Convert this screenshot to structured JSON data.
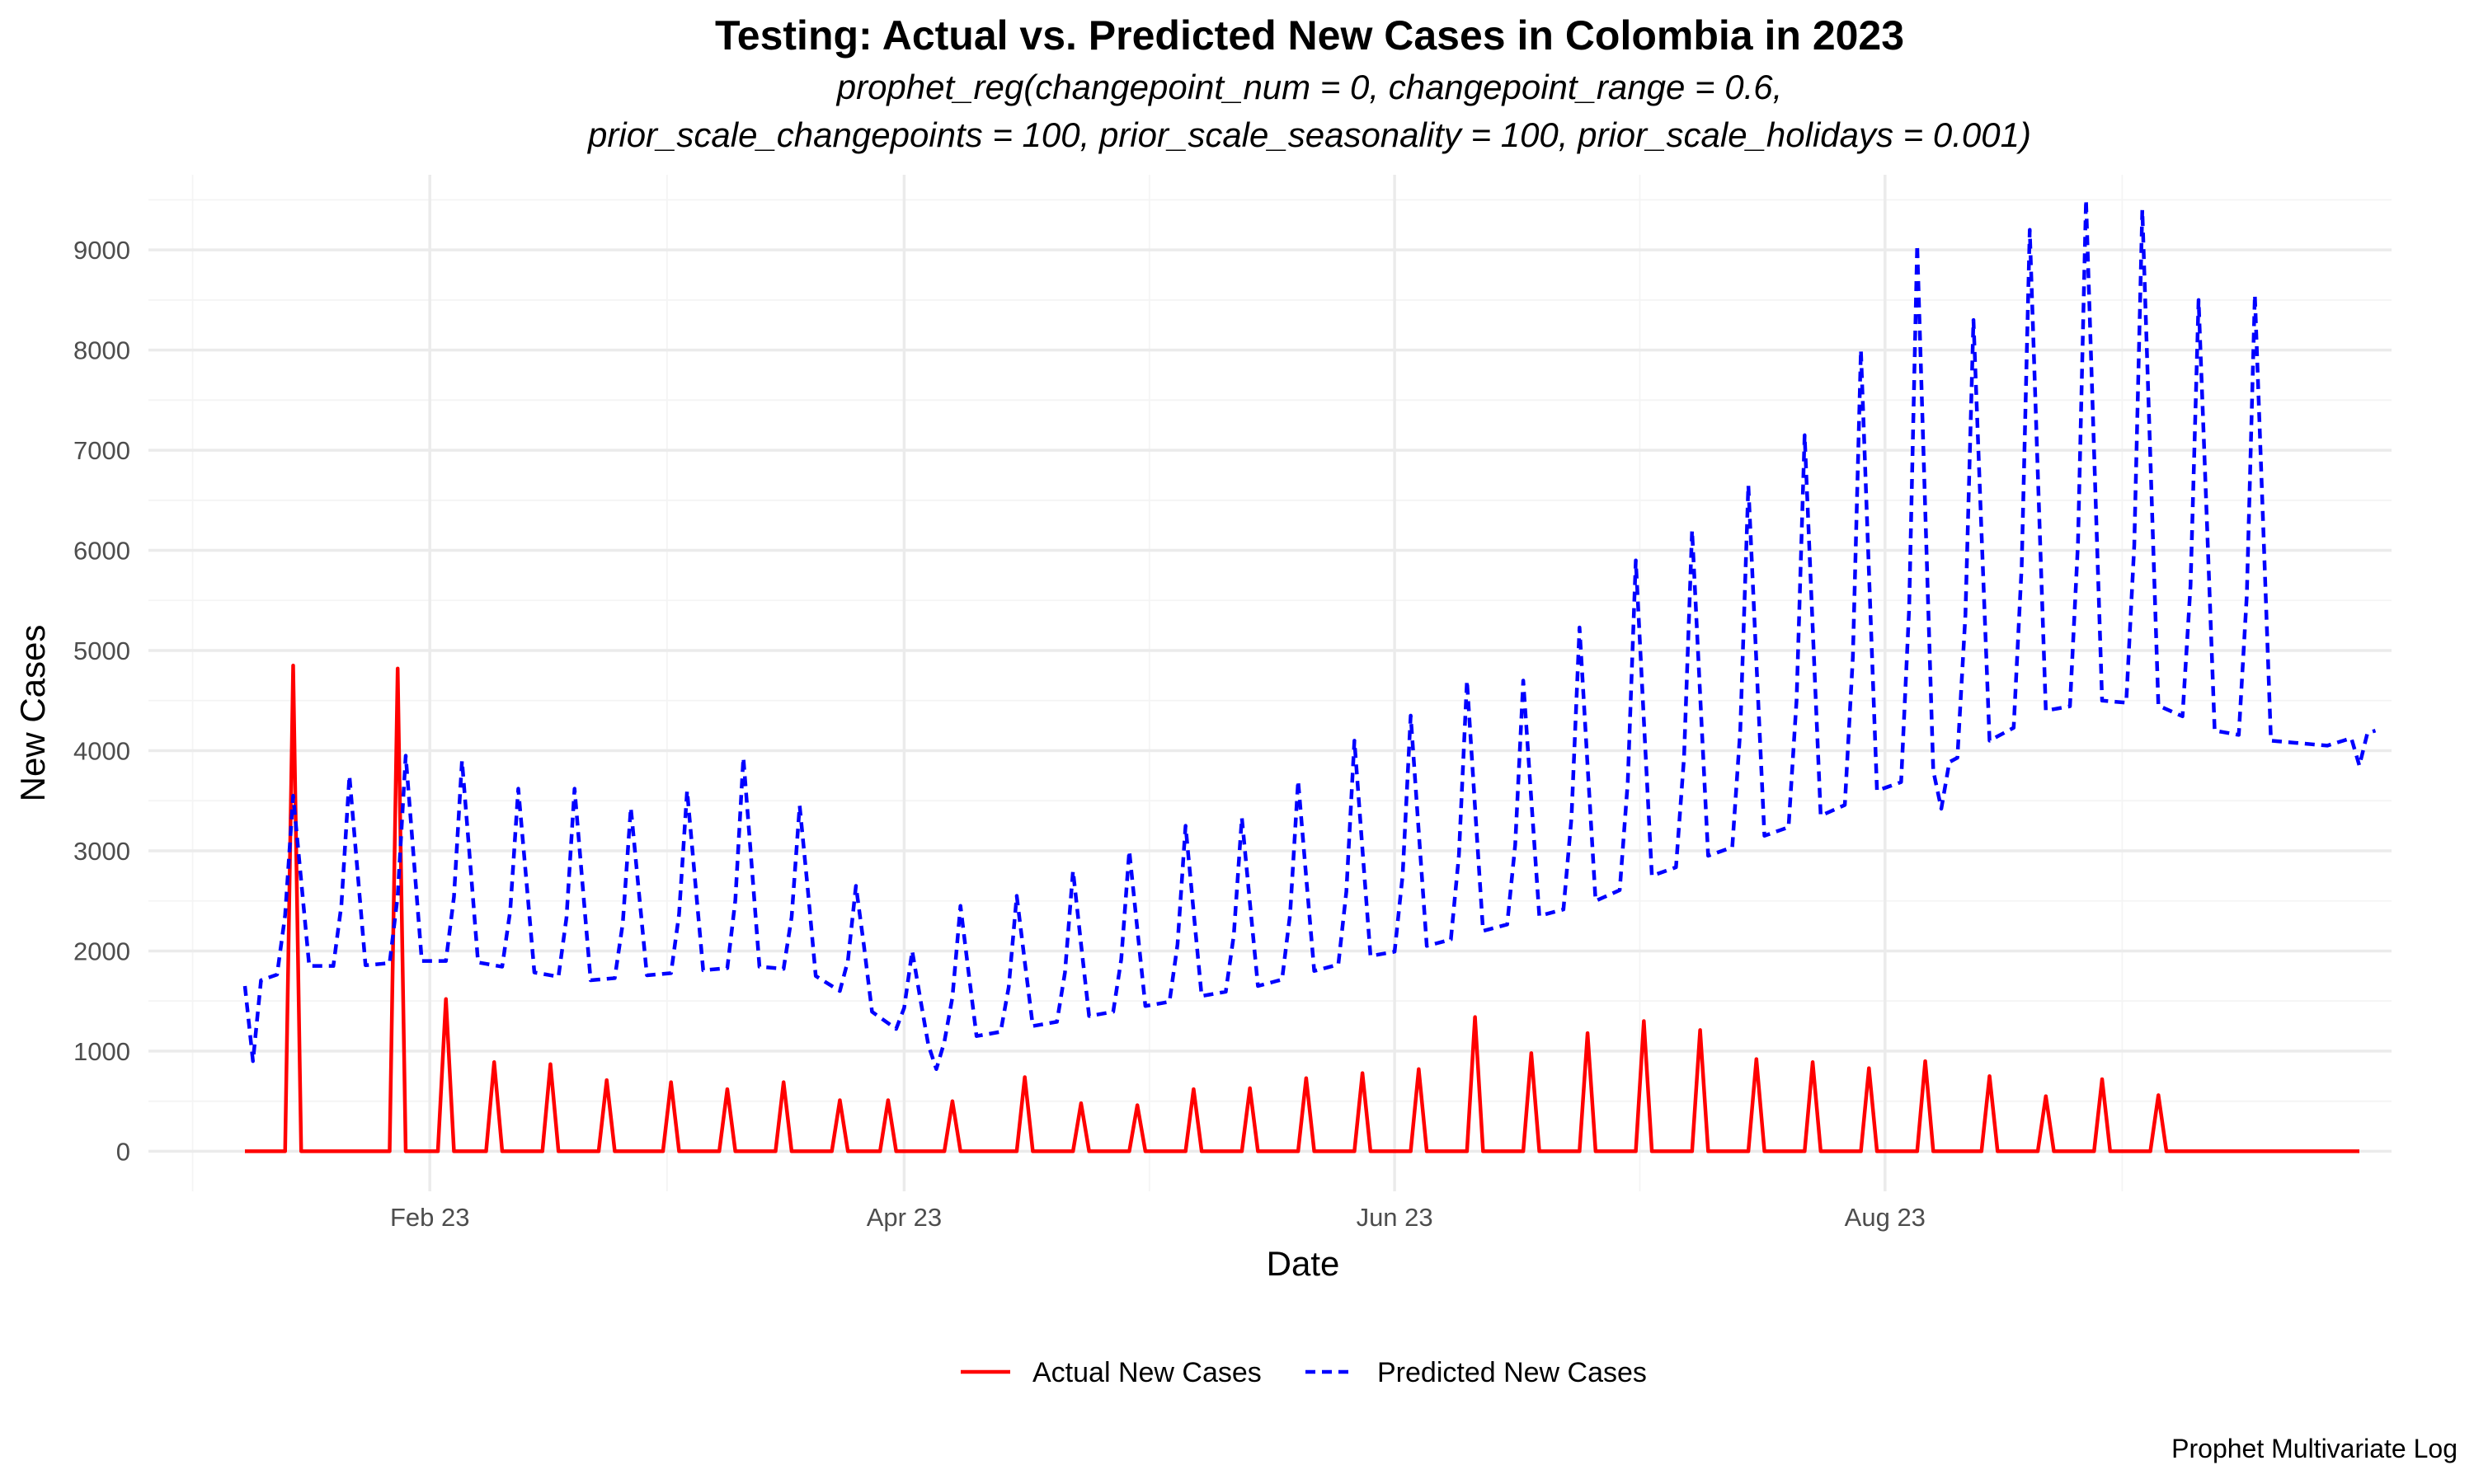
{
  "chart_data": {
    "type": "line",
    "title": "Testing: Actual vs. Predicted New Cases in Colombia in 2023",
    "subtitle_lines": [
      "prophet_reg(changepoint_num = 0, changepoint_range = 0.6,",
      "prior_scale_changepoints = 100, prior_scale_seasonality = 100, prior_scale_holidays = 0.001)"
    ],
    "xlabel": "Date",
    "ylabel": "New Cases",
    "caption": "Prophet Multivariate Log",
    "x_range": [
      "2022-12-28",
      "2023-10-03"
    ],
    "ylim": [
      -400,
      9750
    ],
    "x_ticks": [
      {
        "date": "2023-02-01",
        "label": "Feb 23"
      },
      {
        "date": "2023-04-01",
        "label": "Apr 23"
      },
      {
        "date": "2023-06-01",
        "label": "Jun 23"
      },
      {
        "date": "2023-08-01",
        "label": "Aug 23"
      }
    ],
    "y_ticks": [
      0,
      1000,
      2000,
      3000,
      4000,
      5000,
      6000,
      7000,
      8000,
      9000
    ],
    "grid": true,
    "legend_position": "bottom",
    "series": [
      {
        "name": "Actual New Cases",
        "color": "#ff0000",
        "dash": "solid",
        "start_date": "2023-01-09",
        "end_date": "2023-09-29",
        "baseline": 0,
        "spikes": [
          {
            "date": "2023-01-15",
            "value": 4850
          },
          {
            "date": "2023-01-28",
            "value": 4820
          },
          {
            "date": "2023-02-03",
            "value": 1520
          },
          {
            "date": "2023-02-09",
            "value": 890
          },
          {
            "date": "2023-02-16",
            "value": 870
          },
          {
            "date": "2023-02-23",
            "value": 710
          },
          {
            "date": "2023-03-03",
            "value": 690
          },
          {
            "date": "2023-03-10",
            "value": 620
          },
          {
            "date": "2023-03-17",
            "value": 690
          },
          {
            "date": "2023-03-24",
            "value": 510
          },
          {
            "date": "2023-03-30",
            "value": 510
          },
          {
            "date": "2023-04-07",
            "value": 500
          },
          {
            "date": "2023-04-16",
            "value": 740
          },
          {
            "date": "2023-04-23",
            "value": 480
          },
          {
            "date": "2023-04-30",
            "value": 460
          },
          {
            "date": "2023-05-07",
            "value": 620
          },
          {
            "date": "2023-05-14",
            "value": 630
          },
          {
            "date": "2023-05-21",
            "value": 730
          },
          {
            "date": "2023-05-28",
            "value": 780
          },
          {
            "date": "2023-06-04",
            "value": 820
          },
          {
            "date": "2023-06-11",
            "value": 1340
          },
          {
            "date": "2023-06-18",
            "value": 980
          },
          {
            "date": "2023-06-25",
            "value": 1180
          },
          {
            "date": "2023-07-02",
            "value": 1300
          },
          {
            "date": "2023-07-09",
            "value": 1210
          },
          {
            "date": "2023-07-16",
            "value": 920
          },
          {
            "date": "2023-07-23",
            "value": 890
          },
          {
            "date": "2023-07-30",
            "value": 830
          },
          {
            "date": "2023-08-06",
            "value": 900
          },
          {
            "date": "2023-08-14",
            "value": 750
          },
          {
            "date": "2023-08-21",
            "value": 550
          },
          {
            "date": "2023-08-28",
            "value": 720
          },
          {
            "date": "2023-09-04",
            "value": 560
          }
        ]
      },
      {
        "name": "Predicted New Cases",
        "color": "#0000ff",
        "dash": "dashed",
        "start_date": "2023-01-09",
        "end_date": "2023-10-01",
        "baseline_points": [
          {
            "date": "2023-01-09",
            "value": 1650
          },
          {
            "date": "2023-01-16",
            "value": 1850
          },
          {
            "date": "2023-01-23",
            "value": 1850
          },
          {
            "date": "2023-01-30",
            "value": 1900
          },
          {
            "date": "2023-02-06",
            "value": 1900
          },
          {
            "date": "2023-02-13",
            "value": 1800
          },
          {
            "date": "2023-02-20",
            "value": 1700
          },
          {
            "date": "2023-02-27",
            "value": 1750
          },
          {
            "date": "2023-03-06",
            "value": 1800
          },
          {
            "date": "2023-03-13",
            "value": 1850
          },
          {
            "date": "2023-03-20",
            "value": 1800
          },
          {
            "date": "2023-03-27",
            "value": 1450
          },
          {
            "date": "2023-04-03",
            "value": 1050
          },
          {
            "date": "2023-04-10",
            "value": 1150
          },
          {
            "date": "2023-04-17",
            "value": 1250
          },
          {
            "date": "2023-04-24",
            "value": 1350
          },
          {
            "date": "2023-05-01",
            "value": 1450
          },
          {
            "date": "2023-05-08",
            "value": 1550
          },
          {
            "date": "2023-05-15",
            "value": 1650
          },
          {
            "date": "2023-05-22",
            "value": 1800
          },
          {
            "date": "2023-05-29",
            "value": 1950
          },
          {
            "date": "2023-06-05",
            "value": 2050
          },
          {
            "date": "2023-06-12",
            "value": 2200
          },
          {
            "date": "2023-06-19",
            "value": 2350
          },
          {
            "date": "2023-06-26",
            "value": 2500
          },
          {
            "date": "2023-07-03",
            "value": 2750
          },
          {
            "date": "2023-07-10",
            "value": 2950
          },
          {
            "date": "2023-07-17",
            "value": 3150
          },
          {
            "date": "2023-07-24",
            "value": 3350
          },
          {
            "date": "2023-07-31",
            "value": 3600
          },
          {
            "date": "2023-08-07",
            "value": 3800
          },
          {
            "date": "2023-08-14",
            "value": 4100
          },
          {
            "date": "2023-08-21",
            "value": 4400
          },
          {
            "date": "2023-08-28",
            "value": 4500
          },
          {
            "date": "2023-09-04",
            "value": 4450
          },
          {
            "date": "2023-09-11",
            "value": 4200
          },
          {
            "date": "2023-09-18",
            "value": 4100
          },
          {
            "date": "2023-09-25",
            "value": 4050
          },
          {
            "date": "2023-10-01",
            "value": 4200
          }
        ],
        "dips": [
          {
            "date": "2023-01-10",
            "value": 900
          },
          {
            "date": "2023-04-05",
            "value": 820
          },
          {
            "date": "2023-08-08",
            "value": 3420
          },
          {
            "date": "2023-09-29",
            "value": 3850
          }
        ],
        "spikes": [
          {
            "date": "2023-01-15",
            "value": 3550
          },
          {
            "date": "2023-01-22",
            "value": 3750
          },
          {
            "date": "2023-01-29",
            "value": 3950
          },
          {
            "date": "2023-02-05",
            "value": 3900
          },
          {
            "date": "2023-02-12",
            "value": 3620
          },
          {
            "date": "2023-02-19",
            "value": 3620
          },
          {
            "date": "2023-02-26",
            "value": 3430
          },
          {
            "date": "2023-03-05",
            "value": 3600
          },
          {
            "date": "2023-03-12",
            "value": 3930
          },
          {
            "date": "2023-03-19",
            "value": 3450
          },
          {
            "date": "2023-03-26",
            "value": 2650
          },
          {
            "date": "2023-04-02",
            "value": 2000
          },
          {
            "date": "2023-04-08",
            "value": 2450
          },
          {
            "date": "2023-04-15",
            "value": 2550
          },
          {
            "date": "2023-04-22",
            "value": 2800
          },
          {
            "date": "2023-04-29",
            "value": 3000
          },
          {
            "date": "2023-05-06",
            "value": 3250
          },
          {
            "date": "2023-05-13",
            "value": 3330
          },
          {
            "date": "2023-05-20",
            "value": 3700
          },
          {
            "date": "2023-05-27",
            "value": 4100
          },
          {
            "date": "2023-06-03",
            "value": 4350
          },
          {
            "date": "2023-06-10",
            "value": 4700
          },
          {
            "date": "2023-06-17",
            "value": 4700
          },
          {
            "date": "2023-06-24",
            "value": 5230
          },
          {
            "date": "2023-07-01",
            "value": 5900
          },
          {
            "date": "2023-07-08",
            "value": 6200
          },
          {
            "date": "2023-07-15",
            "value": 6650
          },
          {
            "date": "2023-07-22",
            "value": 7150
          },
          {
            "date": "2023-07-29",
            "value": 8000
          },
          {
            "date": "2023-08-05",
            "value": 9050
          },
          {
            "date": "2023-08-12",
            "value": 8300
          },
          {
            "date": "2023-08-19",
            "value": 9200
          },
          {
            "date": "2023-08-26",
            "value": 9500
          },
          {
            "date": "2023-09-02",
            "value": 9400
          },
          {
            "date": "2023-09-09",
            "value": 8500
          },
          {
            "date": "2023-09-16",
            "value": 8550
          }
        ]
      }
    ]
  }
}
